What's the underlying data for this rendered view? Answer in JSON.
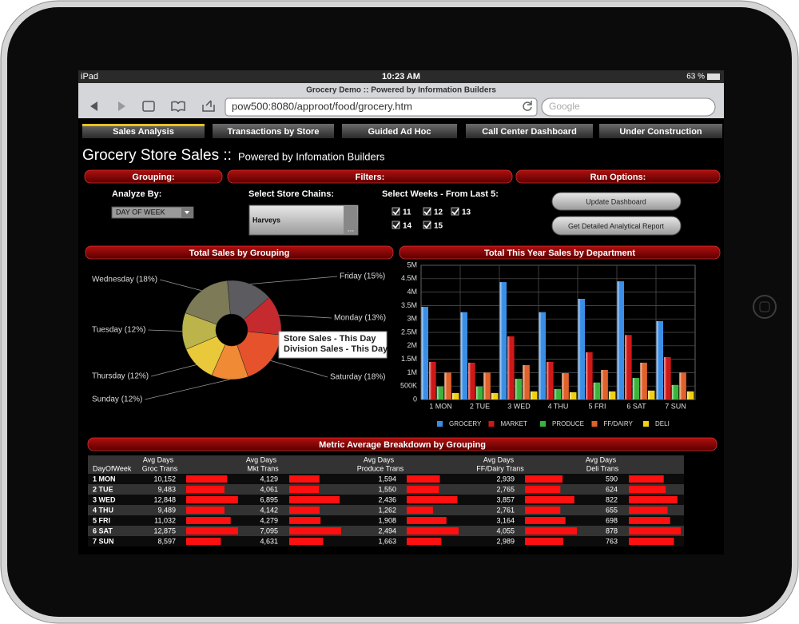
{
  "status_bar": {
    "device": "iPad",
    "time": "10:23 AM",
    "battery": "63 %"
  },
  "browser": {
    "title": "Grocery Demo :: Powered by Information Builders",
    "url": "pow500:8080/approot/food/grocery.htm",
    "search_placeholder": "Google"
  },
  "tabs": [
    "Sales Analysis",
    "Transactions by Store",
    "Guided Ad Hoc",
    "Call Center Dashboard",
    "Under Construction"
  ],
  "header": {
    "title": "Grocery Store Sales ::",
    "subtitle": "Powered by Infomation Builders"
  },
  "controls": {
    "sections": [
      "Grouping:",
      "Filters:",
      "Run Options:"
    ],
    "analyze_by": {
      "label": "Analyze By:",
      "selected": "DAY OF WEEK"
    },
    "store_chains": {
      "label": "Select Store Chains:",
      "selected": "Harveys",
      "more": "..."
    },
    "weeks": {
      "label": "Select Weeks - From Last 5:",
      "options": [
        "11",
        "12",
        "13",
        "14",
        "15"
      ]
    },
    "buttons": [
      "Update Dashboard",
      "Get Detailed Analytical Report"
    ]
  },
  "chart_data": [
    {
      "type": "pie",
      "title": "Total Sales by Grouping",
      "categories": [
        "Friday (15%)",
        "Monday (13%)",
        "Saturday (18%)",
        "Sunday (12%)",
        "Thursday (12%)",
        "Tuesday (12%)",
        "Wednesday (18%)"
      ],
      "values": [
        15,
        13,
        18,
        12,
        12,
        12,
        18
      ],
      "colors": [
        "#5c5c60",
        "#c42a2e",
        "#e5522c",
        "#f08a34",
        "#e9c93a",
        "#bcb34a",
        "#7d7a58"
      ],
      "tooltip": [
        "Store Sales - This Day",
        "Division Sales - This Day"
      ]
    },
    {
      "type": "bar",
      "title": "Total This Year Sales by Department",
      "categories": [
        "1 MON",
        "2 TUE",
        "3 WED",
        "4 THU",
        "5 FRI",
        "6 SAT",
        "7 SUN"
      ],
      "series": [
        {
          "name": "GROCERY",
          "color": "#3a8ee6",
          "values": [
            3450000,
            3250000,
            4370000,
            3250000,
            3750000,
            4400000,
            2920000
          ]
        },
        {
          "name": "MARKET",
          "color": "#d01818",
          "values": [
            1400000,
            1370000,
            2350000,
            1400000,
            1760000,
            2400000,
            1580000
          ]
        },
        {
          "name": "PRODUCE",
          "color": "#3cb43c",
          "values": [
            480000,
            480000,
            770000,
            390000,
            630000,
            800000,
            540000
          ]
        },
        {
          "name": "FF/DAIRY",
          "color": "#e0622a",
          "values": [
            1000000,
            1000000,
            1280000,
            980000,
            1100000,
            1370000,
            1000000
          ]
        },
        {
          "name": "DELI",
          "color": "#f0d010",
          "values": [
            240000,
            240000,
            300000,
            270000,
            300000,
            330000,
            300000
          ]
        }
      ],
      "ylim": [
        0,
        5000000
      ],
      "yticks": [
        0,
        {
          "value": 500000,
          "label": "500K"
        },
        {
          "value": 1000000,
          "label": "1M"
        },
        {
          "value": 1500000,
          "label": "1.5M"
        },
        {
          "value": 2000000,
          "label": "2M"
        },
        {
          "value": 2500000,
          "label": "2.5M"
        },
        {
          "value": 3000000,
          "label": "3M"
        },
        {
          "value": 3500000,
          "label": "3.5M"
        },
        {
          "value": 4000000,
          "label": "4M"
        },
        {
          "value": 4500000,
          "label": "4.5M"
        },
        {
          "value": 5000000,
          "label": "5M"
        }
      ],
      "grid": true
    }
  ],
  "table": {
    "title": "Metric Average Breakdown by Grouping",
    "headers": [
      [
        "DayOfWeek"
      ],
      [
        "Avg Days",
        "Groc Trans"
      ],
      [
        "Avg Days",
        "Mkt Trans"
      ],
      [
        "Avg Days",
        "Produce Trans"
      ],
      [
        "Avg Days",
        "FF/Dairy Trans"
      ],
      [
        "Avg Days",
        "Deli Trans"
      ]
    ],
    "rows": [
      {
        "day": "1 MON",
        "values": [
          10152,
          4129,
          1594,
          2939,
          590
        ],
        "value_labels": [
          "10,152",
          "4,129",
          "1,594",
          "2,939",
          "590"
        ]
      },
      {
        "day": "2 TUE",
        "values": [
          9483,
          4061,
          1550,
          2765,
          624
        ],
        "value_labels": [
          "9,483",
          "4,061",
          "1,550",
          "2,765",
          "624"
        ]
      },
      {
        "day": "3 WED",
        "values": [
          12848,
          6895,
          2436,
          3857,
          822
        ],
        "value_labels": [
          "12,848",
          "6,895",
          "2,436",
          "3,857",
          "822"
        ]
      },
      {
        "day": "4 THU",
        "values": [
          9489,
          4142,
          1262,
          2761,
          655
        ],
        "value_labels": [
          "9,489",
          "4,142",
          "1,262",
          "2,761",
          "655"
        ]
      },
      {
        "day": "5 FRI",
        "values": [
          11032,
          4279,
          1908,
          3164,
          698
        ],
        "value_labels": [
          "11,032",
          "4,279",
          "1,908",
          "3,164",
          "698"
        ]
      },
      {
        "day": "6 SAT",
        "values": [
          12875,
          7095,
          2494,
          4055,
          878
        ],
        "value_labels": [
          "12,875",
          "7,095",
          "2,494",
          "4,055",
          "878"
        ]
      },
      {
        "day": "7 SUN",
        "values": [
          8597,
          4631,
          1663,
          2989,
          763
        ],
        "value_labels": [
          "8,597",
          "4,631",
          "1,663",
          "2,989",
          "763"
        ]
      }
    ]
  }
}
